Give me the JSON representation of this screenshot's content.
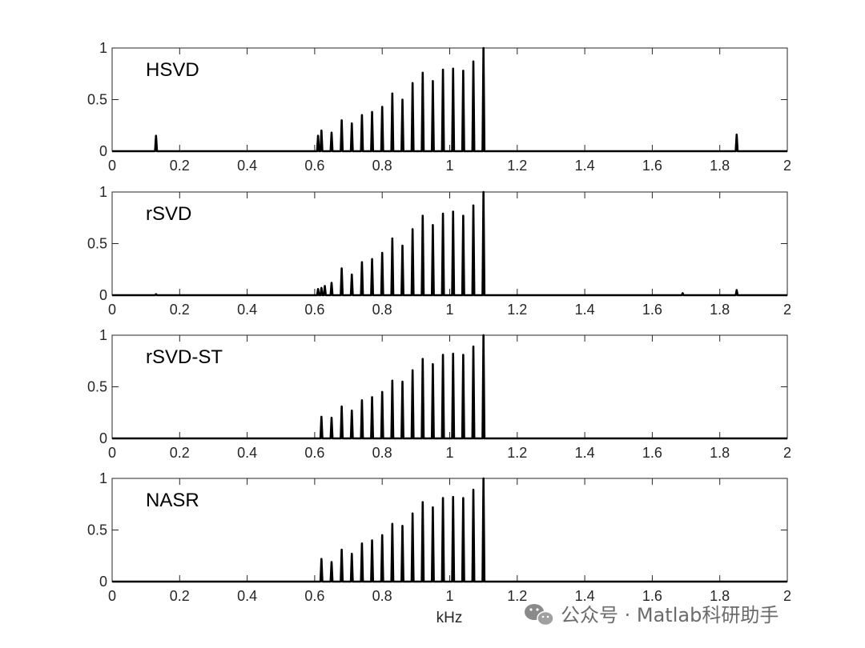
{
  "chart_data": [
    {
      "type": "line",
      "title": "HSVD",
      "xlim": [
        0,
        2
      ],
      "ylim": [
        0,
        1
      ],
      "xticks": [
        "0",
        "0.2",
        "0.4",
        "0.6",
        "0.8",
        "1",
        "1.2",
        "1.4",
        "1.6",
        "1.8",
        "2"
      ],
      "yticks": [
        "0",
        "0.5",
        "1"
      ],
      "grid": false,
      "peaks": [
        {
          "x": 0.13,
          "y": 0.15
        },
        {
          "x": 0.61,
          "y": 0.15
        },
        {
          "x": 0.62,
          "y": 0.2
        },
        {
          "x": 0.65,
          "y": 0.18
        },
        {
          "x": 0.68,
          "y": 0.3
        },
        {
          "x": 0.71,
          "y": 0.27
        },
        {
          "x": 0.74,
          "y": 0.35
        },
        {
          "x": 0.77,
          "y": 0.38
        },
        {
          "x": 0.8,
          "y": 0.43
        },
        {
          "x": 0.83,
          "y": 0.56
        },
        {
          "x": 0.86,
          "y": 0.5
        },
        {
          "x": 0.89,
          "y": 0.66
        },
        {
          "x": 0.92,
          "y": 0.76
        },
        {
          "x": 0.95,
          "y": 0.68
        },
        {
          "x": 0.98,
          "y": 0.79
        },
        {
          "x": 1.01,
          "y": 0.8
        },
        {
          "x": 1.04,
          "y": 0.78
        },
        {
          "x": 1.07,
          "y": 0.87
        },
        {
          "x": 1.1,
          "y": 1.0
        },
        {
          "x": 1.85,
          "y": 0.16
        }
      ]
    },
    {
      "type": "line",
      "title": "rSVD",
      "xlim": [
        0,
        2
      ],
      "ylim": [
        0,
        1
      ],
      "xticks": [
        "0",
        "0.2",
        "0.4",
        "0.6",
        "0.8",
        "1",
        "1.2",
        "1.4",
        "1.6",
        "1.8",
        "2"
      ],
      "yticks": [
        "0",
        "0.5",
        "1"
      ],
      "grid": false,
      "peaks": [
        {
          "x": 0.13,
          "y": 0.01
        },
        {
          "x": 0.61,
          "y": 0.06
        },
        {
          "x": 0.62,
          "y": 0.07
        },
        {
          "x": 0.63,
          "y": 0.09
        },
        {
          "x": 0.65,
          "y": 0.12
        },
        {
          "x": 0.68,
          "y": 0.26
        },
        {
          "x": 0.71,
          "y": 0.2
        },
        {
          "x": 0.74,
          "y": 0.32
        },
        {
          "x": 0.77,
          "y": 0.35
        },
        {
          "x": 0.8,
          "y": 0.41
        },
        {
          "x": 0.83,
          "y": 0.55
        },
        {
          "x": 0.86,
          "y": 0.48
        },
        {
          "x": 0.89,
          "y": 0.64
        },
        {
          "x": 0.92,
          "y": 0.77
        },
        {
          "x": 0.95,
          "y": 0.68
        },
        {
          "x": 0.98,
          "y": 0.79
        },
        {
          "x": 1.01,
          "y": 0.81
        },
        {
          "x": 1.04,
          "y": 0.77
        },
        {
          "x": 1.07,
          "y": 0.87
        },
        {
          "x": 1.1,
          "y": 1.0
        },
        {
          "x": 1.69,
          "y": 0.02
        },
        {
          "x": 1.85,
          "y": 0.05
        }
      ]
    },
    {
      "type": "line",
      "title": "rSVD-ST",
      "xlim": [
        0,
        2
      ],
      "ylim": [
        0,
        1
      ],
      "xticks": [
        "0",
        "0.2",
        "0.4",
        "0.6",
        "0.8",
        "1",
        "1.2",
        "1.4",
        "1.6",
        "1.8",
        "2"
      ],
      "yticks": [
        "0",
        "0.5",
        "1"
      ],
      "grid": false,
      "peaks": [
        {
          "x": 0.62,
          "y": 0.21
        },
        {
          "x": 0.65,
          "y": 0.2
        },
        {
          "x": 0.68,
          "y": 0.31
        },
        {
          "x": 0.71,
          "y": 0.27
        },
        {
          "x": 0.74,
          "y": 0.37
        },
        {
          "x": 0.77,
          "y": 0.4
        },
        {
          "x": 0.8,
          "y": 0.45
        },
        {
          "x": 0.83,
          "y": 0.56
        },
        {
          "x": 0.86,
          "y": 0.55
        },
        {
          "x": 0.89,
          "y": 0.66
        },
        {
          "x": 0.92,
          "y": 0.77
        },
        {
          "x": 0.95,
          "y": 0.72
        },
        {
          "x": 0.98,
          "y": 0.81
        },
        {
          "x": 1.01,
          "y": 0.82
        },
        {
          "x": 1.04,
          "y": 0.81
        },
        {
          "x": 1.07,
          "y": 0.89
        },
        {
          "x": 1.1,
          "y": 1.0
        }
      ]
    },
    {
      "type": "line",
      "title": "NASR",
      "xlabel": "kHz",
      "xlim": [
        0,
        2
      ],
      "ylim": [
        0,
        1
      ],
      "xticks": [
        "0",
        "0.2",
        "0.4",
        "0.6",
        "0.8",
        "1",
        "1.2",
        "1.4",
        "1.6",
        "1.8",
        "2"
      ],
      "yticks": [
        "0",
        "0.5",
        "1"
      ],
      "grid": false,
      "peaks": [
        {
          "x": 0.62,
          "y": 0.22
        },
        {
          "x": 0.65,
          "y": 0.19
        },
        {
          "x": 0.68,
          "y": 0.31
        },
        {
          "x": 0.71,
          "y": 0.27
        },
        {
          "x": 0.74,
          "y": 0.37
        },
        {
          "x": 0.77,
          "y": 0.4
        },
        {
          "x": 0.8,
          "y": 0.45
        },
        {
          "x": 0.83,
          "y": 0.56
        },
        {
          "x": 0.86,
          "y": 0.54
        },
        {
          "x": 0.89,
          "y": 0.66
        },
        {
          "x": 0.92,
          "y": 0.77
        },
        {
          "x": 0.95,
          "y": 0.72
        },
        {
          "x": 0.98,
          "y": 0.81
        },
        {
          "x": 1.01,
          "y": 0.82
        },
        {
          "x": 1.04,
          "y": 0.81
        },
        {
          "x": 1.07,
          "y": 0.89
        },
        {
          "x": 1.1,
          "y": 1.0
        }
      ]
    }
  ],
  "watermark": {
    "text": "公众号 · Matlab科研助手",
    "icon": "wechat-icon",
    "color": "#6b6b6b"
  },
  "colors": {
    "line": "#000000",
    "axes": "#262626",
    "background": "#ffffff"
  }
}
